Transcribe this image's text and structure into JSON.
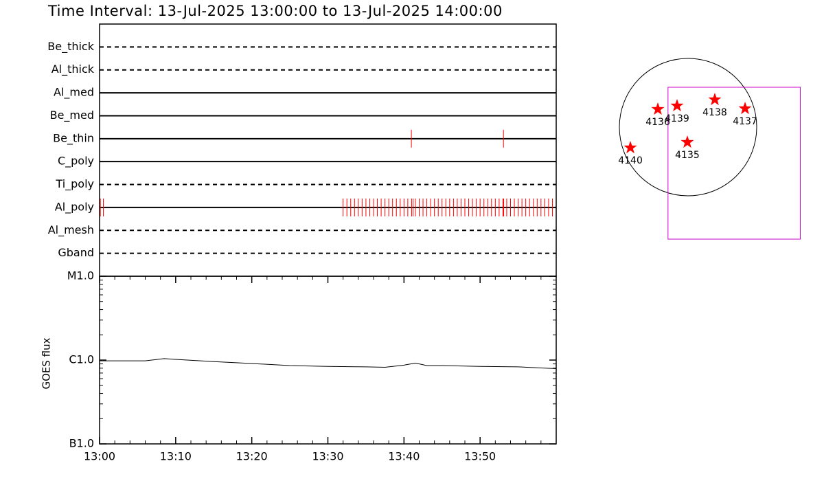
{
  "title": "Time Interval: 13-Jul-2025 13:00:00 to 13-Jul-2025 14:00:00",
  "chart_data": [
    {
      "type": "event",
      "categories": [
        "Be_thick",
        "Al_thick",
        "Al_med",
        "Be_med",
        "Be_thin",
        "C_poly",
        "Ti_poly",
        "Al_poly",
        "Al_mesh",
        "Gband"
      ],
      "line_styles": [
        "dashed",
        "dashed",
        "solid",
        "solid",
        "solid",
        "solid",
        "dashed",
        "solid",
        "dashed",
        "dashed"
      ],
      "events": [
        [],
        [],
        [],
        [],
        [
          40.97,
          53.07
        ],
        [],
        [],
        [
          0.1,
          0.5,
          32,
          32.5,
          33,
          33.5,
          34,
          34.5,
          35,
          35.5,
          36,
          36.5,
          37,
          37.5,
          38,
          38.5,
          39,
          39.5,
          40,
          40.5,
          41,
          41.2,
          41.5,
          42,
          42.5,
          43,
          43.5,
          44,
          44.5,
          45,
          45.5,
          46,
          46.5,
          47,
          47.5,
          48,
          48.5,
          49,
          49.5,
          50,
          50.5,
          51,
          51.5,
          52,
          52.5,
          53,
          53.1,
          53.5,
          54,
          54.5,
          55,
          55.5,
          56,
          56.5,
          57,
          57.5,
          58,
          58.5,
          59,
          59.5
        ],
        [],
        []
      ],
      "color": "#ff0000",
      "xlim": [
        0,
        60
      ]
    },
    {
      "type": "line",
      "ylabel": "GOES flux",
      "x": [
        0,
        6,
        8.5,
        10,
        15,
        20,
        25,
        30,
        35,
        37.5,
        40,
        41.5,
        43,
        45,
        50,
        55,
        60
      ],
      "values": [
        9.8e-07,
        9.8e-07,
        1.04e-06,
        1.02e-06,
        9.6e-07,
        9.1e-07,
        8.6e-07,
        8.4e-07,
        8.3e-07,
        8.2e-07,
        8.7e-07,
        9.2e-07,
        8.6e-07,
        8.6e-07,
        8.4e-07,
        8.3e-07,
        7.9e-07
      ],
      "color": "#000000",
      "log_scale": true,
      "xlim": [
        0,
        60
      ],
      "xticks": [
        {
          "value": 0,
          "label": "13:00"
        },
        {
          "value": 10,
          "label": "13:10"
        },
        {
          "value": 20,
          "label": "13:20"
        },
        {
          "value": 30,
          "label": "13:30"
        },
        {
          "value": 40,
          "label": "13:40"
        },
        {
          "value": 50,
          "label": "13:50"
        }
      ],
      "ylim": [
        1e-07,
        1e-05
      ],
      "yticks": [
        {
          "value": 1e-07,
          "label": "B1.0"
        },
        {
          "value": 1e-06,
          "label": "C1.0"
        },
        {
          "value": 1e-05,
          "label": "M1.0"
        }
      ]
    },
    {
      "type": "map",
      "labels": [
        "4136",
        "4139",
        "4138",
        "4137",
        "4135",
        "4140"
      ],
      "x": [
        -422,
        -154,
        374,
        797,
        -10,
        -806
      ],
      "y": [
        250,
        298,
        384,
        259,
        -211,
        -288
      ],
      "color": "#ff0000",
      "disk_radius": 960,
      "fov": {
        "xlim": [
          -280,
          1570
        ],
        "ylim": [
          -1565,
          557
        ],
        "color": "#cc00cc"
      }
    }
  ]
}
